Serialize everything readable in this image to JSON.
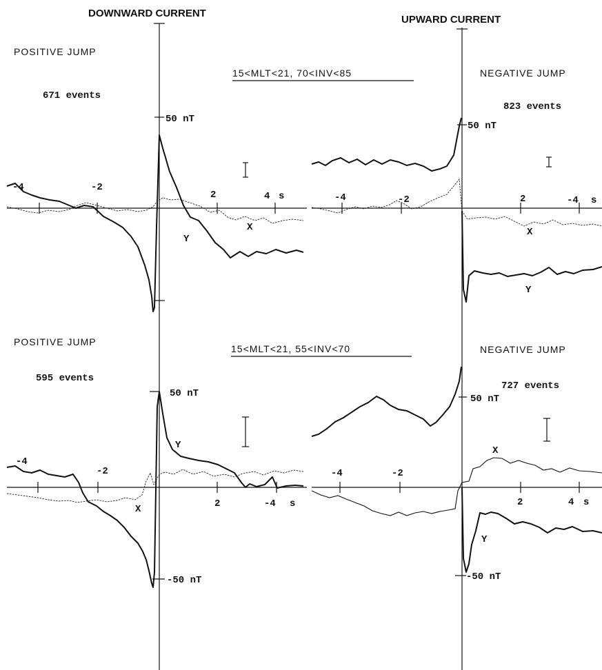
{
  "headers": {
    "left": "DOWNWARD CURRENT",
    "right": "UPWARD CURRENT"
  },
  "rows": [
    {
      "condition": "15<MLT<21, 70<INV<85",
      "left": {
        "jump": "POSITIVE JUMP",
        "events": "671 events",
        "scale_label": "50 nT"
      },
      "right": {
        "jump": "NEGATIVE JUMP",
        "events": "823 events",
        "scale_label": "50 nT"
      }
    },
    {
      "condition": "15<MLT<21, 55<INV<70",
      "left": {
        "jump": "POSITIVE JUMP",
        "events": "595 events",
        "scale_label": "50 nT",
        "neg_scale_label": "-50 nT"
      },
      "right": {
        "jump": "NEGATIVE JUMP",
        "events": "727 events",
        "scale_label": "50 nT",
        "neg_scale_label": "-50 nT"
      }
    }
  ],
  "tick_labels": {
    "m4": "-4",
    "m2": "-2",
    "p2": "2",
    "p4": "4",
    "unit": "s"
  },
  "series_labels": {
    "x": "X",
    "y": "Y"
  },
  "chart_data": [
    {
      "type": "line",
      "panel": "top-left",
      "xlabel": "s",
      "ylabel": "nT",
      "xlim": [
        -5,
        5
      ],
      "ylim": [
        -50,
        50
      ],
      "x": [
        -5,
        -4.5,
        -4,
        -3.5,
        -3,
        -2.5,
        -2,
        -1.5,
        -1,
        -0.5,
        -0.2,
        0,
        0.15,
        0.5,
        1,
        1.5,
        2,
        2.5,
        3,
        3.5,
        4,
        4.5,
        5
      ],
      "series": [
        {
          "name": "Y",
          "values": [
            10,
            7,
            6,
            1,
            -2,
            -1,
            -3,
            -8,
            -12,
            -22,
            -35,
            -48,
            30,
            16,
            2,
            -7,
            -15,
            -22,
            -27,
            -22,
            -25,
            -23,
            -24
          ]
        },
        {
          "name": "X",
          "values": [
            2,
            -2,
            -4,
            -5,
            -1,
            2,
            0,
            -1,
            -3,
            -4,
            -3,
            5,
            4,
            5,
            2,
            1,
            -4,
            -4,
            -6,
            -5,
            -7,
            -6,
            -7
          ]
        }
      ]
    },
    {
      "type": "line",
      "panel": "top-right",
      "xlabel": "s",
      "ylabel": "nT",
      "xlim": [
        -5,
        5
      ],
      "ylim": [
        -50,
        50
      ],
      "x": [
        -5,
        -4.5,
        -4,
        -3.5,
        -3,
        -2.5,
        -2,
        -1.5,
        -1,
        -0.5,
        -0.2,
        0,
        0.1,
        0.3,
        0.5,
        1,
        1.5,
        2,
        2.5,
        3,
        3.5,
        4,
        4.5,
        5
      ],
      "series": [
        {
          "name": "Y",
          "values": [
            22,
            23,
            25,
            24,
            22,
            24,
            21,
            23,
            20,
            19,
            25,
            44,
            -35,
            -45,
            -32,
            -30,
            -31,
            -32,
            -28,
            -29,
            -31,
            -28,
            -29,
            -29
          ],
          "segments_note": "upper curve before 0, lower curve after 0"
        },
        {
          "name": "X",
          "values": [
            1,
            -1,
            -3,
            0,
            1,
            2,
            2,
            0,
            4,
            8,
            12,
            18,
            -6,
            -5,
            -5,
            -6,
            -4,
            -5,
            -8,
            -6,
            -6,
            -8,
            -8,
            -9
          ]
        }
      ]
    },
    {
      "type": "line",
      "panel": "bottom-left",
      "xlabel": "s",
      "ylabel": "nT",
      "xlim": [
        -5,
        5
      ],
      "ylim": [
        -50,
        50
      ],
      "x": [
        -5,
        -4.5,
        -4,
        -3.5,
        -3,
        -2.5,
        -2,
        -1.5,
        -1,
        -0.5,
        -0.2,
        0,
        0.1,
        0.5,
        1,
        1.5,
        2,
        2.5,
        3,
        3.5,
        4,
        4.5,
        5
      ],
      "series": [
        {
          "name": "Y",
          "values": [
            10,
            9,
            7,
            5,
            4,
            0,
            -6,
            -10,
            -15,
            -25,
            -30,
            -50,
            45,
            15,
            12,
            12,
            10,
            7,
            2,
            -5,
            -3,
            -4,
            -4
          ]
        },
        {
          "name": "X",
          "values": [
            -5,
            -7,
            -6,
            -8,
            -7,
            -5,
            -5,
            -4,
            -3,
            -3,
            2,
            1,
            1,
            3,
            2,
            3,
            1,
            2,
            6,
            5,
            7,
            6,
            7
          ]
        }
      ]
    },
    {
      "type": "line",
      "panel": "bottom-right",
      "xlabel": "s",
      "ylabel": "nT",
      "xlim": [
        -5,
        5
      ],
      "ylim": [
        -50,
        50
      ],
      "x": [
        -5,
        -4.5,
        -4,
        -3.5,
        -3,
        -2.5,
        -2,
        -1.5,
        -1,
        -0.5,
        -0.2,
        0,
        0.1,
        0.3,
        0.6,
        1,
        1.5,
        2,
        2.5,
        3,
        3.5,
        4,
        4.5,
        5
      ],
      "series": [
        {
          "name": "Y",
          "values": [
            28,
            30,
            33,
            36,
            38,
            36,
            34,
            30,
            28,
            33,
            40,
            48,
            -45,
            -25,
            -15,
            -14,
            -16,
            -18,
            -20,
            -18,
            -21,
            -20,
            -22,
            -23
          ],
          "segments_note": "upper curve before 0, lower curve after 0"
        },
        {
          "name": "X",
          "values": [
            -1,
            -3,
            -4,
            -3,
            -5,
            -6,
            -7,
            -6,
            -5,
            -4,
            0,
            8,
            10,
            14,
            18,
            20,
            18,
            17,
            16,
            14,
            15,
            13,
            12,
            13
          ]
        }
      ]
    }
  ]
}
